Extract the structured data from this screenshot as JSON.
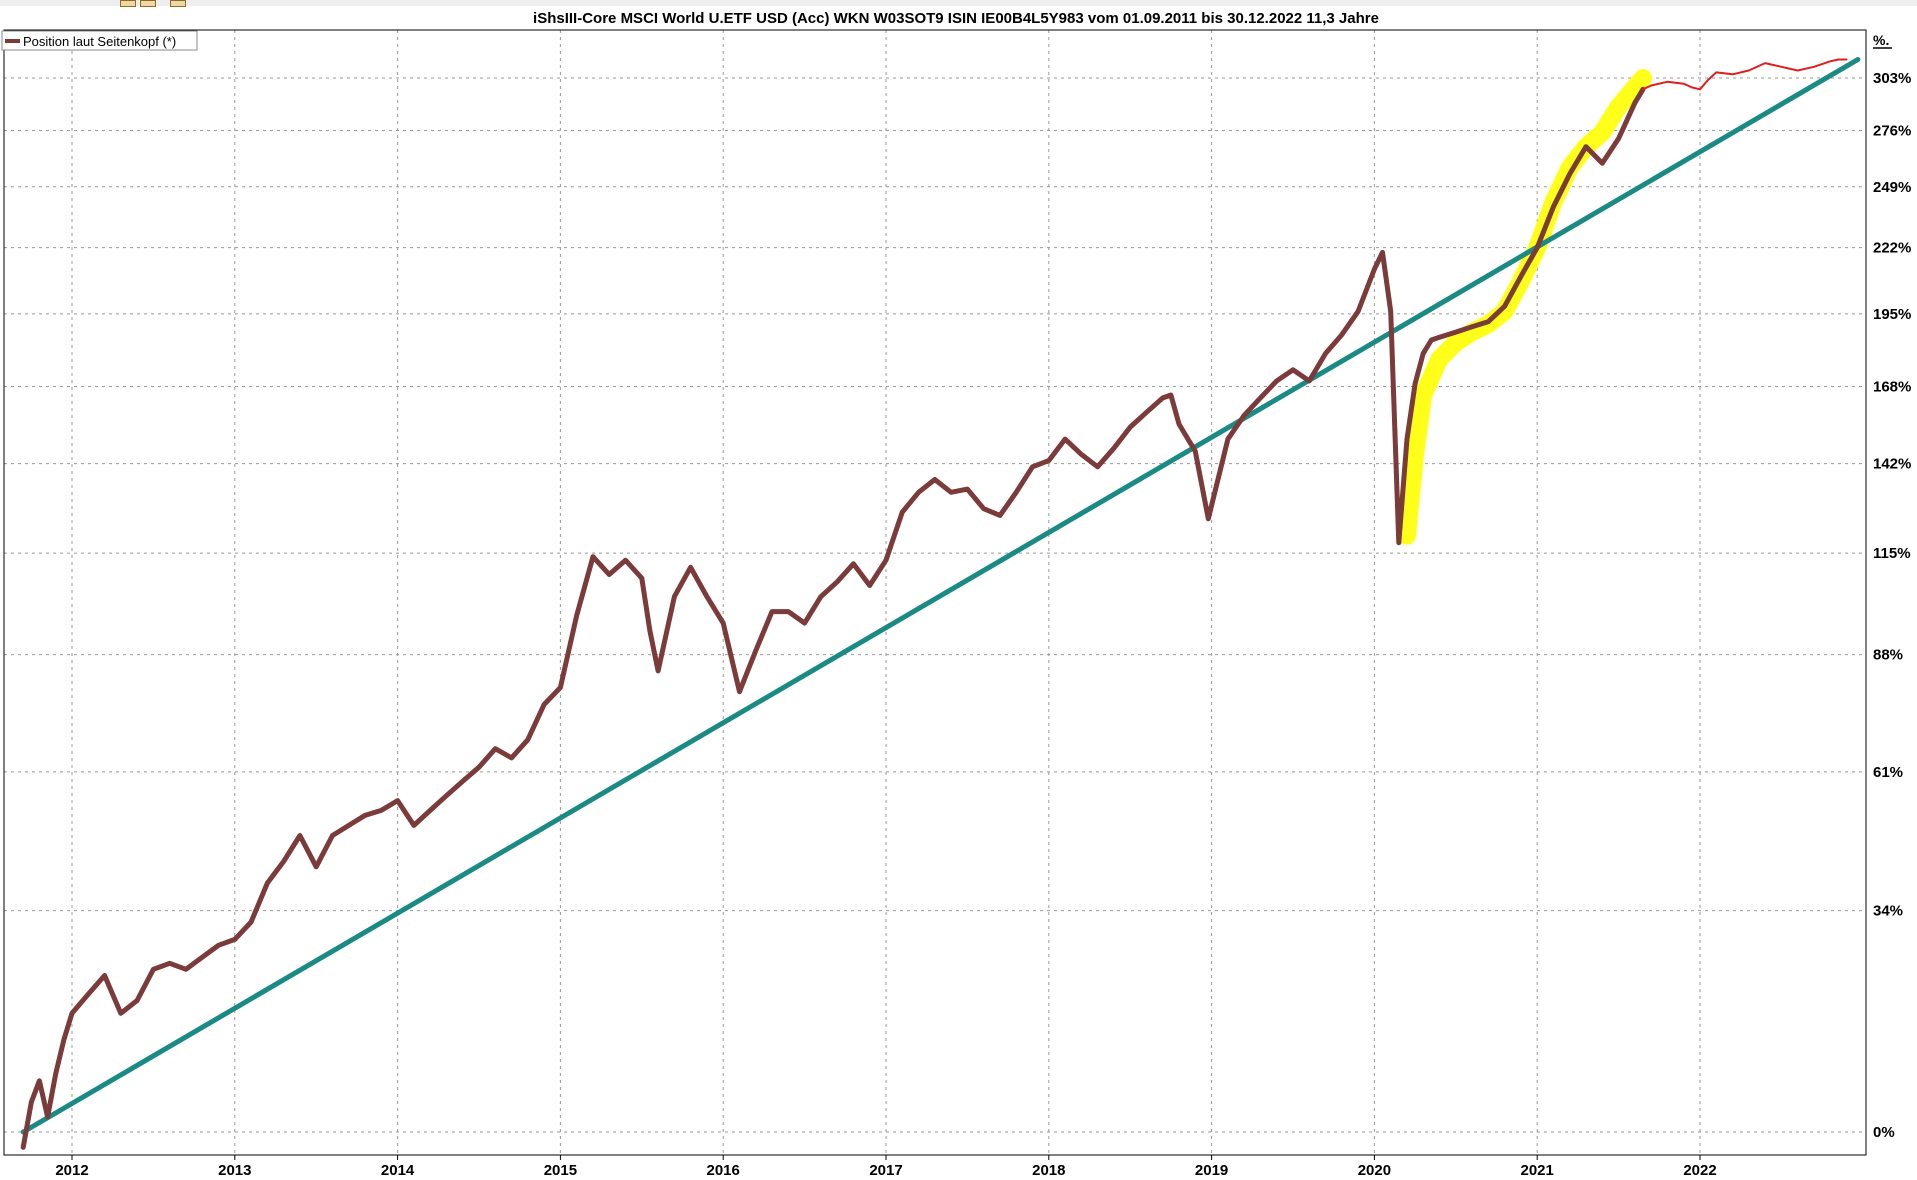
{
  "toolbar": {
    "icons": [
      "toolbar-button-icon",
      "toolbar-button-icon",
      "toolbar-button-icon"
    ]
  },
  "chart_data": {
    "type": "line",
    "title": "iShsIII-Core MSCI World U.ETF USD (Acc) WKN W03SOT9 ISIN IE00B4L5Y983 vom 01.09.2011 bis 30.12.2022 11,3 Jahre",
    "y_unit_label": "%.",
    "legend": {
      "label": "Position laut Seitenkopf (*)",
      "placement": "top-left"
    },
    "grid": true,
    "scale": "log (value = 100 + %)",
    "ylim": [
      -5,
      330
    ],
    "xlim": [
      2011.7,
      2022.95
    ],
    "y_ticks": [
      {
        "value": 0,
        "label": "0%"
      },
      {
        "value": 34,
        "label": "34%"
      },
      {
        "value": 61,
        "label": "61%"
      },
      {
        "value": 88,
        "label": "88%"
      },
      {
        "value": 115,
        "label": "115%"
      },
      {
        "value": 142,
        "label": "142%"
      },
      {
        "value": 168,
        "label": "168%"
      },
      {
        "value": 195,
        "label": "195%"
      },
      {
        "value": 222,
        "label": "222%"
      },
      {
        "value": 249,
        "label": "249%"
      },
      {
        "value": 276,
        "label": "276%"
      },
      {
        "value": 303,
        "label": "303%"
      }
    ],
    "x_ticks": [
      {
        "value": 2012,
        "label": "2012"
      },
      {
        "value": 2013,
        "label": "2013"
      },
      {
        "value": 2014,
        "label": "2014"
      },
      {
        "value": 2015,
        "label": "2015"
      },
      {
        "value": 2016,
        "label": "2016"
      },
      {
        "value": 2017,
        "label": "2017"
      },
      {
        "value": 2018,
        "label": "2018"
      },
      {
        "value": 2019,
        "label": "2019"
      },
      {
        "value": 2020,
        "label": "2020"
      },
      {
        "value": 2021,
        "label": "2021"
      },
      {
        "value": 2022,
        "label": "2022"
      }
    ],
    "series": [
      {
        "name": "Position laut Seitenkopf (*)",
        "color": "#7a3b3a",
        "x": [
          2011.7,
          2011.75,
          2011.8,
          2011.85,
          2011.9,
          2011.95,
          2012.0,
          2012.1,
          2012.2,
          2012.3,
          2012.4,
          2012.5,
          2012.6,
          2012.7,
          2012.8,
          2012.9,
          2013.0,
          2013.1,
          2013.2,
          2013.3,
          2013.4,
          2013.5,
          2013.6,
          2013.7,
          2013.8,
          2013.9,
          2014.0,
          2014.1,
          2014.2,
          2014.3,
          2014.4,
          2014.5,
          2014.6,
          2014.7,
          2014.8,
          2014.9,
          2015.0,
          2015.1,
          2015.2,
          2015.3,
          2015.4,
          2015.5,
          2015.55,
          2015.6,
          2015.7,
          2015.8,
          2015.9,
          2016.0,
          2016.1,
          2016.2,
          2016.3,
          2016.4,
          2016.5,
          2016.6,
          2016.7,
          2016.8,
          2016.9,
          2017.0,
          2017.1,
          2017.2,
          2017.3,
          2017.4,
          2017.5,
          2017.6,
          2017.7,
          2017.8,
          2017.9,
          2018.0,
          2018.1,
          2018.2,
          2018.3,
          2018.4,
          2018.5,
          2018.6,
          2018.7,
          2018.75,
          2018.8,
          2018.9,
          2018.98,
          2019.1,
          2019.2,
          2019.3,
          2019.4,
          2019.5,
          2019.6,
          2019.7,
          2019.8,
          2019.9,
          2020.0,
          2020.05,
          2020.1,
          2020.15,
          2020.2,
          2020.25,
          2020.3,
          2020.35,
          2020.4,
          2020.5,
          2020.6,
          2020.7,
          2020.8,
          2020.9,
          2021.0,
          2021.1,
          2021.2,
          2021.3,
          2021.4,
          2021.5,
          2021.6,
          2021.65
        ],
        "values": [
          -2,
          4,
          7,
          2,
          8,
          13,
          17,
          20,
          23,
          17,
          19,
          24,
          25,
          24,
          26,
          28,
          29,
          32,
          39,
          43,
          48,
          42,
          48,
          50,
          52,
          53,
          55,
          50,
          53,
          56,
          59,
          62,
          66,
          64,
          68,
          76,
          80,
          98,
          114,
          109,
          113,
          108,
          94,
          84,
          103,
          111,
          103,
          96,
          79,
          89,
          99,
          99,
          96,
          103,
          107,
          112,
          106,
          113,
          127,
          133,
          137,
          133,
          134,
          128,
          126,
          133,
          141,
          143,
          150,
          145,
          141,
          147,
          154,
          159,
          164,
          165,
          155,
          146,
          125,
          150,
          158,
          164,
          170,
          174,
          170,
          180,
          187,
          196,
          213,
          220,
          196,
          118,
          150,
          169,
          180,
          185,
          186,
          188,
          190,
          192,
          198,
          210,
          222,
          240,
          255,
          268,
          260,
          272,
          290,
          297
        ]
      },
      {
        "name": "",
        "color": "#e21d1d",
        "x": [
          2021.65,
          2021.7,
          2021.8,
          2021.9,
          2021.95,
          2022.0,
          2022.05,
          2022.1,
          2022.2,
          2022.3,
          2022.4,
          2022.5,
          2022.6,
          2022.7,
          2022.8,
          2022.85,
          2022.9
        ],
        "values": [
          297,
          299,
          301,
          300,
          298,
          297,
          302,
          306,
          305,
          307,
          311,
          309,
          307,
          309,
          312,
          313,
          313
        ]
      },
      {
        "name": "",
        "color": "#1a8a84",
        "x": [
          2011.7,
          2022.97
        ],
        "values": [
          0,
          313
        ]
      }
    ],
    "highlight_band": {
      "color": "#ffff1a",
      "x": [
        2020.2,
        2020.25,
        2020.3,
        2020.4,
        2020.5,
        2020.6,
        2020.7,
        2020.8,
        2020.9,
        2021.0,
        2021.1,
        2021.2,
        2021.3,
        2021.4,
        2021.5,
        2021.6,
        2021.65
      ],
      "values": [
        120,
        145,
        165,
        178,
        184,
        188,
        191,
        196,
        208,
        222,
        242,
        258,
        268,
        275,
        288,
        298,
        303
      ]
    }
  }
}
